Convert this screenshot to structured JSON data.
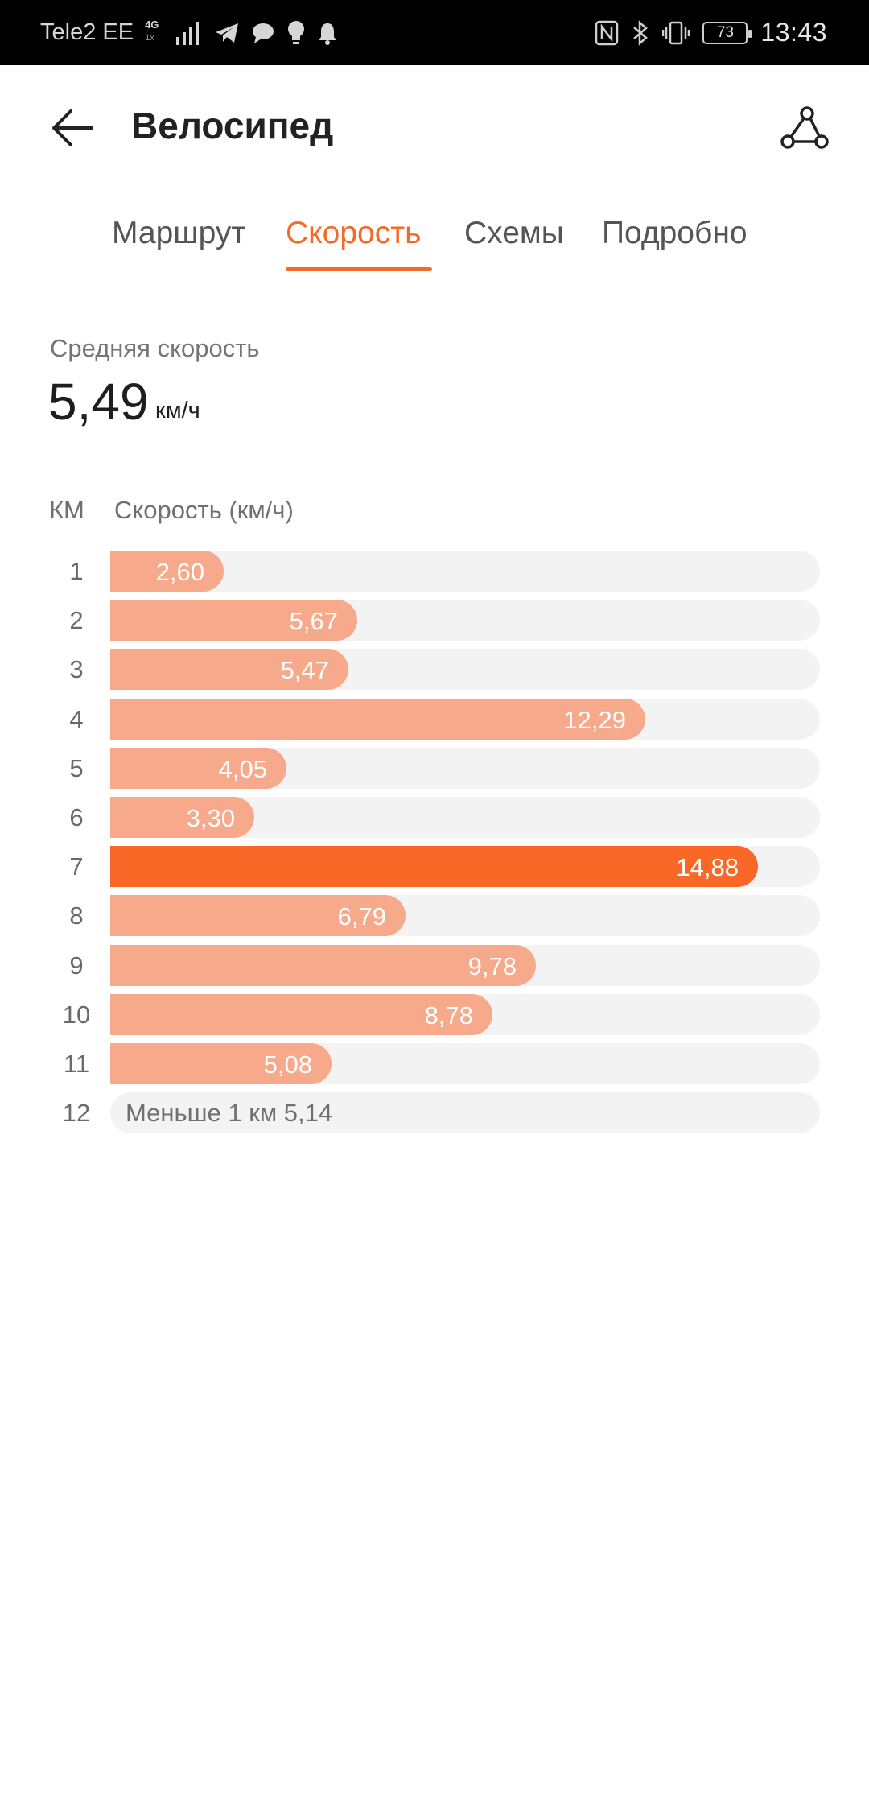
{
  "status_bar": {
    "carrier": "Tele2 EE",
    "network": "4G",
    "network_sub": "1x",
    "battery": "73",
    "time": "13:43",
    "icons": [
      "signal-icon",
      "telegram-icon",
      "chat-bubble-icon",
      "lightbulb-icon",
      "bell-icon",
      "nfc-icon",
      "bluetooth-icon",
      "vibrate-icon",
      "battery-icon"
    ]
  },
  "header": {
    "title": "Велосипед",
    "back_icon": "arrow-left-icon",
    "route_icon": "route-icon"
  },
  "tabs": [
    {
      "label": "Маршрут",
      "active": false
    },
    {
      "label": "Скорость",
      "active": true
    },
    {
      "label": "Схемы",
      "active": false
    },
    {
      "label": "Подробно",
      "active": false
    }
  ],
  "summary": {
    "label": "Средняя скорость",
    "value": "5,49",
    "unit": "км/ч"
  },
  "table": {
    "col_km": "КМ",
    "col_speed": "Скорость (км/ч)",
    "partial_row": {
      "km": "12",
      "text": "Меньше 1 км 5,14"
    }
  },
  "colors": {
    "accent": "#f26b2a",
    "bar": "#f7a98b",
    "bar_max": "#fa6828",
    "track": "#f4f3f4"
  },
  "chart_data": {
    "type": "bar",
    "orientation": "horizontal",
    "xlabel": "КМ",
    "ylabel": "Скорость (км/ч)",
    "categories": [
      "1",
      "2",
      "3",
      "4",
      "5",
      "6",
      "7",
      "8",
      "9",
      "10",
      "11"
    ],
    "values": [
      2.6,
      5.67,
      5.47,
      12.29,
      4.05,
      3.3,
      14.88,
      6.79,
      9.78,
      8.78,
      5.08
    ],
    "labels": [
      "2,60",
      "5,67",
      "5,47",
      "12,29",
      "4,05",
      "3,30",
      "14,88",
      "6,79",
      "9,78",
      "8,78",
      "5,08"
    ],
    "highlight_index": 6,
    "xlim": [
      0,
      16.3
    ]
  }
}
